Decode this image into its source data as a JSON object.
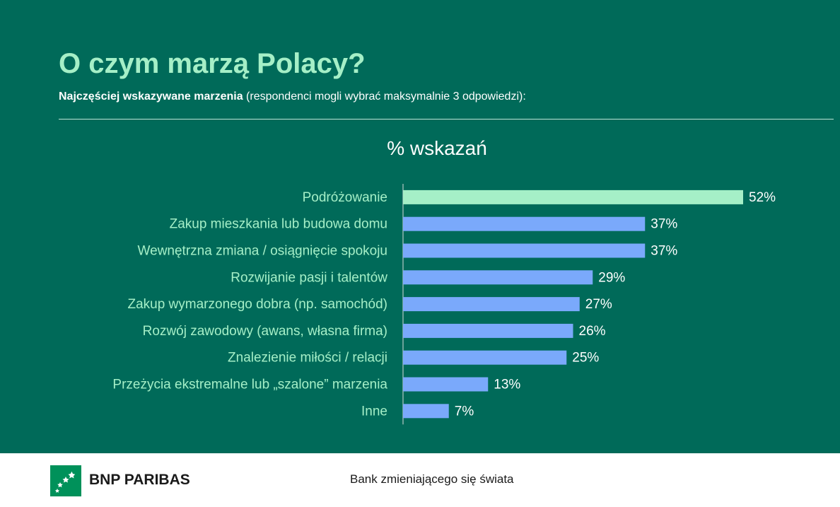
{
  "header": {
    "title": "O czym marzą Polacy?",
    "subtitle_bold": "Najczęściej wskazywane marzenia",
    "subtitle_rest": " (respondenci mogli wybrać maksymalnie 3 odpowiedzi):"
  },
  "chart_data": {
    "type": "bar",
    "orientation": "horizontal",
    "title": "% wskazań",
    "categories": [
      "Podróżowanie",
      "Zakup mieszkania lub budowa domu",
      "Wewnętrzna zmiana / osiągnięcie spokoju",
      "Rozwijanie pasji i talentów",
      "Zakup wymarzonego dobra (np. samochód)",
      "Rozwój zawodowy (awans, własna firma)",
      "Znalezienie miłości / relacji",
      "Przeżycia ekstremalne lub „szalone” marzenia",
      "Inne"
    ],
    "values": [
      52,
      37,
      37,
      29,
      27,
      26,
      25,
      13,
      7
    ],
    "value_labels": [
      "52%",
      "37%",
      "37%",
      "29%",
      "27%",
      "26%",
      "25%",
      "13%",
      "7%"
    ],
    "highlight_color": "#a5efc7",
    "bar_color": "#7aa9fb",
    "grid": false
  },
  "footer": {
    "brand": "BNP PARIBAS",
    "tagline": "Bank zmieniającego się świata",
    "logo_icon": "stars-logo-icon"
  }
}
